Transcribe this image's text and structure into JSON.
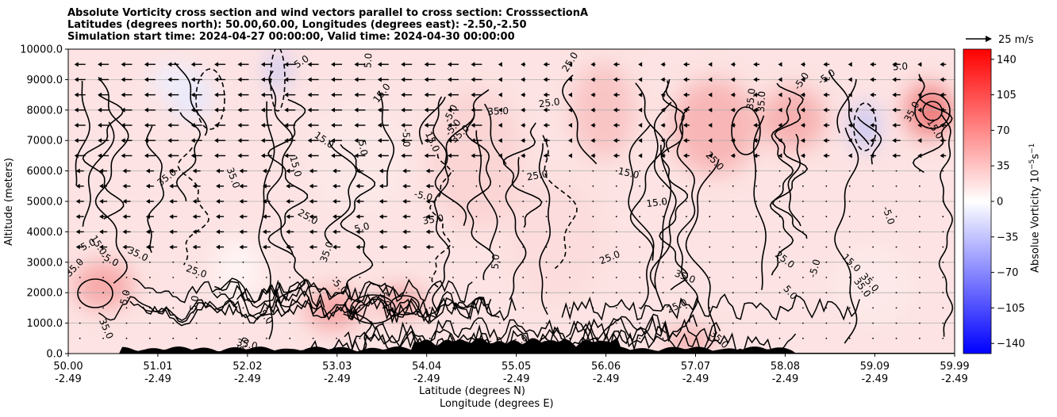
{
  "chart_data": {
    "type": "heatmap",
    "title_lines": [
      "Absolute Vorticity cross section and wind vectors parallel to cross section: CrosssectionA",
      "Latitudes (degrees north): 50.00,60.00, Longitudes (degrees east): -2.50,-2.50",
      "Simulation start time: 2024-04-27 00:00:00, Valid time: 2024-04-30 00:00:00"
    ],
    "ylabel": "Altitude (meters)",
    "xlabel_line1": "Latitude (degrees N)",
    "xlabel_line2": "Longitude (degrees E)",
    "ylim": [
      0,
      10000
    ],
    "xlim": [
      50.0,
      59.99
    ],
    "y_ticks": [
      "0.0",
      "1000.0",
      "2000.0",
      "3000.0",
      "4000.0",
      "5000.0",
      "6000.0",
      "7000.0",
      "8000.0",
      "9000.0",
      "10000.0"
    ],
    "y_tick_values": [
      0,
      1000,
      2000,
      3000,
      4000,
      5000,
      6000,
      7000,
      8000,
      9000,
      10000
    ],
    "x_tick_lat": [
      "50.00",
      "51.01",
      "52.02",
      "53.03",
      "54.04",
      "55.05",
      "56.06",
      "57.07",
      "58.08",
      "59.09",
      "59.99"
    ],
    "x_tick_lon": [
      "-2.49",
      "-2.49",
      "-2.49",
      "-2.49",
      "-2.49",
      "-2.49",
      "-2.49",
      "-2.49",
      "-2.49",
      "-2.49",
      "-2.49"
    ],
    "x_tick_values": [
      50.0,
      51.01,
      52.02,
      53.03,
      54.04,
      55.05,
      56.06,
      57.07,
      58.08,
      59.09,
      59.99
    ],
    "grid": "horizontal",
    "colorbar": {
      "label": "Absolue Vorticity 10",
      "label_sup1": "−5",
      "label_mid": "s",
      "label_sup2": "−1",
      "range": [
        -150,
        150
      ],
      "ticks": [
        "140",
        "105",
        "70",
        "35",
        "0",
        "−35",
        "−70",
        "−105",
        "−140"
      ],
      "tick_values": [
        140,
        105,
        70,
        35,
        0,
        -35,
        -70,
        -105,
        -140
      ],
      "cmap": "bwr",
      "color_low": "#0000ff",
      "color_mid": "#ffffff",
      "color_high": "#ff0000"
    },
    "quiver_key_label": "25 m/s",
    "contour_labels": [
      "5.0",
      "15.0",
      "25.0",
      "35.0",
      "-5.0"
    ],
    "wind_direction": "northward component mostly negative (pointing toward lower latitude) aloft, weak near surface"
  }
}
